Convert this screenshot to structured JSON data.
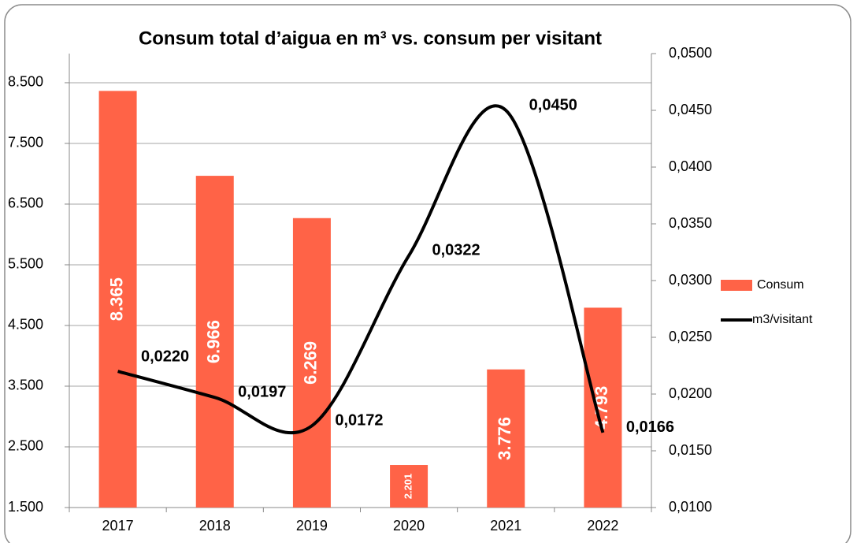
{
  "chart_data": {
    "type": "bar-line",
    "title": "Consum total d’aigua en m³ vs. consum per visitant",
    "categories": [
      "2017",
      "2018",
      "2019",
      "2020",
      "2021",
      "2022"
    ],
    "series": [
      {
        "name": "Consum",
        "color": "#ff6347",
        "type": "bar",
        "values": [
          8365,
          6966,
          6269,
          2201,
          3776,
          4793
        ],
        "value_labels": [
          "8.365",
          "6.966",
          "6.269",
          "2.201",
          "3.776",
          "4.793"
        ]
      },
      {
        "name": "m3/visitant",
        "color": "#000000",
        "type": "line",
        "axis": "y2",
        "smooth": true,
        "values": [
          0.022,
          0.0197,
          0.0172,
          0.0322,
          0.045,
          0.0166
        ],
        "value_labels": [
          "0,0220",
          "0,0197",
          "0,0172",
          "0,0322",
          "0,0450",
          "0,0166"
        ]
      }
    ],
    "ylim": [
      1500,
      8980
    ],
    "yticks": [
      {
        "value": 1500,
        "label": "1.500"
      },
      {
        "value": 2500,
        "label": "2.500"
      },
      {
        "value": 3500,
        "label": "3.500"
      },
      {
        "value": 4500,
        "label": "4.500"
      },
      {
        "value": 5500,
        "label": "5.500"
      },
      {
        "value": 6500,
        "label": "6.500"
      },
      {
        "value": 7500,
        "label": "7.500"
      },
      {
        "value": 8500,
        "label": "8.500"
      }
    ],
    "y2lim": [
      0.01,
      0.05
    ],
    "y2ticks": [
      {
        "value": 0.01,
        "label": "0,0100"
      },
      {
        "value": 0.015,
        "label": "0,0150"
      },
      {
        "value": 0.02,
        "label": "0,0200"
      },
      {
        "value": 0.025,
        "label": "0,0250"
      },
      {
        "value": 0.03,
        "label": "0,0300"
      },
      {
        "value": 0.035,
        "label": "0,0350"
      },
      {
        "value": 0.04,
        "label": "0,0400"
      },
      {
        "value": 0.045,
        "label": "0,0450"
      },
      {
        "value": 0.05,
        "label": "0,0500"
      }
    ],
    "grid": true,
    "legend": "right"
  }
}
